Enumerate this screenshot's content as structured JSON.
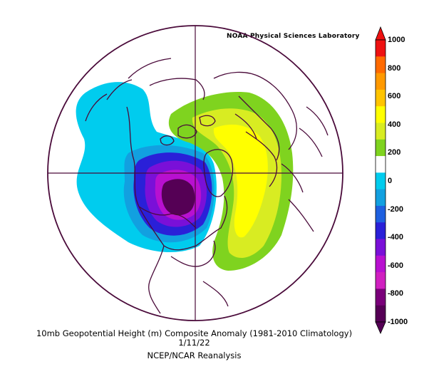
{
  "credit": "NOAA Physical Sciences Laboratory",
  "caption": {
    "line1": "10mb Geopotential Height (m) Composite Anomaly (1981-2010 Climatology)",
    "line2": "1/11/22",
    "line3": "NCEP/NCAR Reanalysis"
  },
  "colorbar": {
    "labels": [
      "1000",
      "800",
      "600",
      "400",
      "200",
      "0",
      "-200",
      "-400",
      "-600",
      "-800",
      "-1000"
    ],
    "colors": [
      "#ee1111",
      "#ff6a00",
      "#ff9900",
      "#ffc400",
      "#ffff00",
      "#d8ec22",
      "#7fd31f",
      "#ffffff",
      "#00ccee",
      "#12a0e0",
      "#1e60e0",
      "#2a20d8",
      "#7a10d8",
      "#b810d0",
      "#d020c0",
      "#7a007a",
      "#550055"
    ]
  },
  "map_colors": {
    "coast": "#4a0a3a",
    "pos_200": "#7fd31f",
    "pos_400": "#d8ec22",
    "pos_500": "#ffff00",
    "neg_200": "#00ccee",
    "neg_300": "#12a0e0",
    "neg_400": "#2a20d8",
    "neg_600": "#7a10d8",
    "neg_800": "#b810d0",
    "neg_1000": "#550055"
  }
}
